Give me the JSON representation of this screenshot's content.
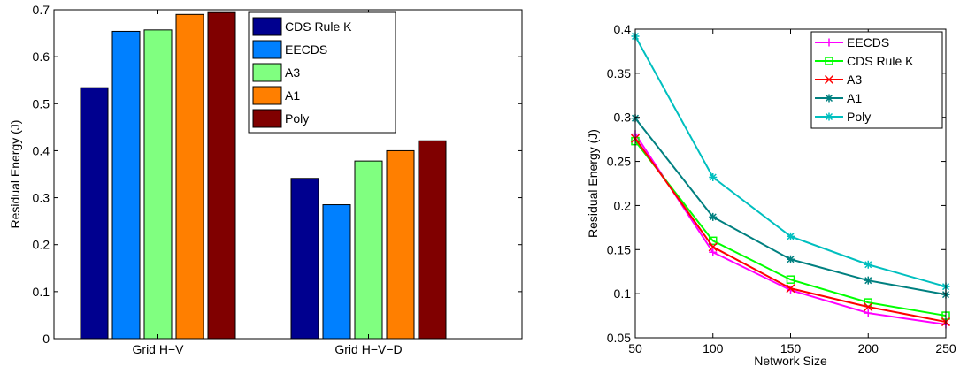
{
  "chart_data": [
    {
      "type": "bar",
      "title": "",
      "xlabel": "",
      "ylabel": "Residual Energy (J)",
      "ylim": [
        0,
        0.7
      ],
      "yticks": [
        0,
        0.1,
        0.2,
        0.3,
        0.4,
        0.5,
        0.6,
        0.7
      ],
      "ytick_labels": [
        "0",
        "0.1",
        "0.2",
        "0.3",
        "0.4",
        "0.5",
        "0.6",
        "0.7"
      ],
      "categories": [
        "Grid H−V",
        "Grid H−V−D"
      ],
      "series": [
        {
          "name": "CDS Rule K",
          "color": "#00008f",
          "values": [
            0.534,
            0.341
          ]
        },
        {
          "name": "EECDS",
          "color": "#0080ff",
          "values": [
            0.654,
            0.285
          ]
        },
        {
          "name": "A3",
          "color": "#80ff80",
          "values": [
            0.657,
            0.378
          ]
        },
        {
          "name": "A1",
          "color": "#ff7f00",
          "values": [
            0.69,
            0.4
          ]
        },
        {
          "name": "Poly",
          "color": "#800000",
          "values": [
            0.694,
            0.421
          ]
        }
      ],
      "legend_position": "top-right",
      "grid": false
    },
    {
      "type": "line",
      "title": "",
      "xlabel": "Network Size",
      "ylabel": "Residual Energy (J)",
      "x": [
        50,
        100,
        150,
        200,
        250
      ],
      "xlim": [
        50,
        250
      ],
      "xticks": [
        50,
        100,
        150,
        200,
        250
      ],
      "ylim": [
        0.05,
        0.4
      ],
      "yticks": [
        0.05,
        0.1,
        0.15,
        0.2,
        0.25,
        0.3,
        0.35,
        0.4
      ],
      "ytick_labels": [
        "0.05",
        "0.1",
        "0.15",
        "0.2",
        "0.25",
        "0.3",
        "0.35",
        "0.4"
      ],
      "series": [
        {
          "name": "EECDS",
          "color": "#ff00ff",
          "marker": "plus",
          "values": [
            0.281,
            0.147,
            0.104,
            0.078,
            0.065
          ]
        },
        {
          "name": "CDS Rule K",
          "color": "#00ff00",
          "marker": "square",
          "values": [
            0.273,
            0.16,
            0.116,
            0.09,
            0.075
          ]
        },
        {
          "name": "A3",
          "color": "#ff0000",
          "marker": "x",
          "values": [
            0.276,
            0.153,
            0.106,
            0.085,
            0.068
          ]
        },
        {
          "name": "A1",
          "color": "#008080",
          "marker": "star",
          "values": [
            0.299,
            0.187,
            0.139,
            0.115,
            0.099
          ]
        },
        {
          "name": "Poly",
          "color": "#00bfbf",
          "marker": "star",
          "values": [
            0.392,
            0.232,
            0.165,
            0.133,
            0.108
          ]
        }
      ],
      "legend_position": "top-right",
      "grid": false
    }
  ]
}
